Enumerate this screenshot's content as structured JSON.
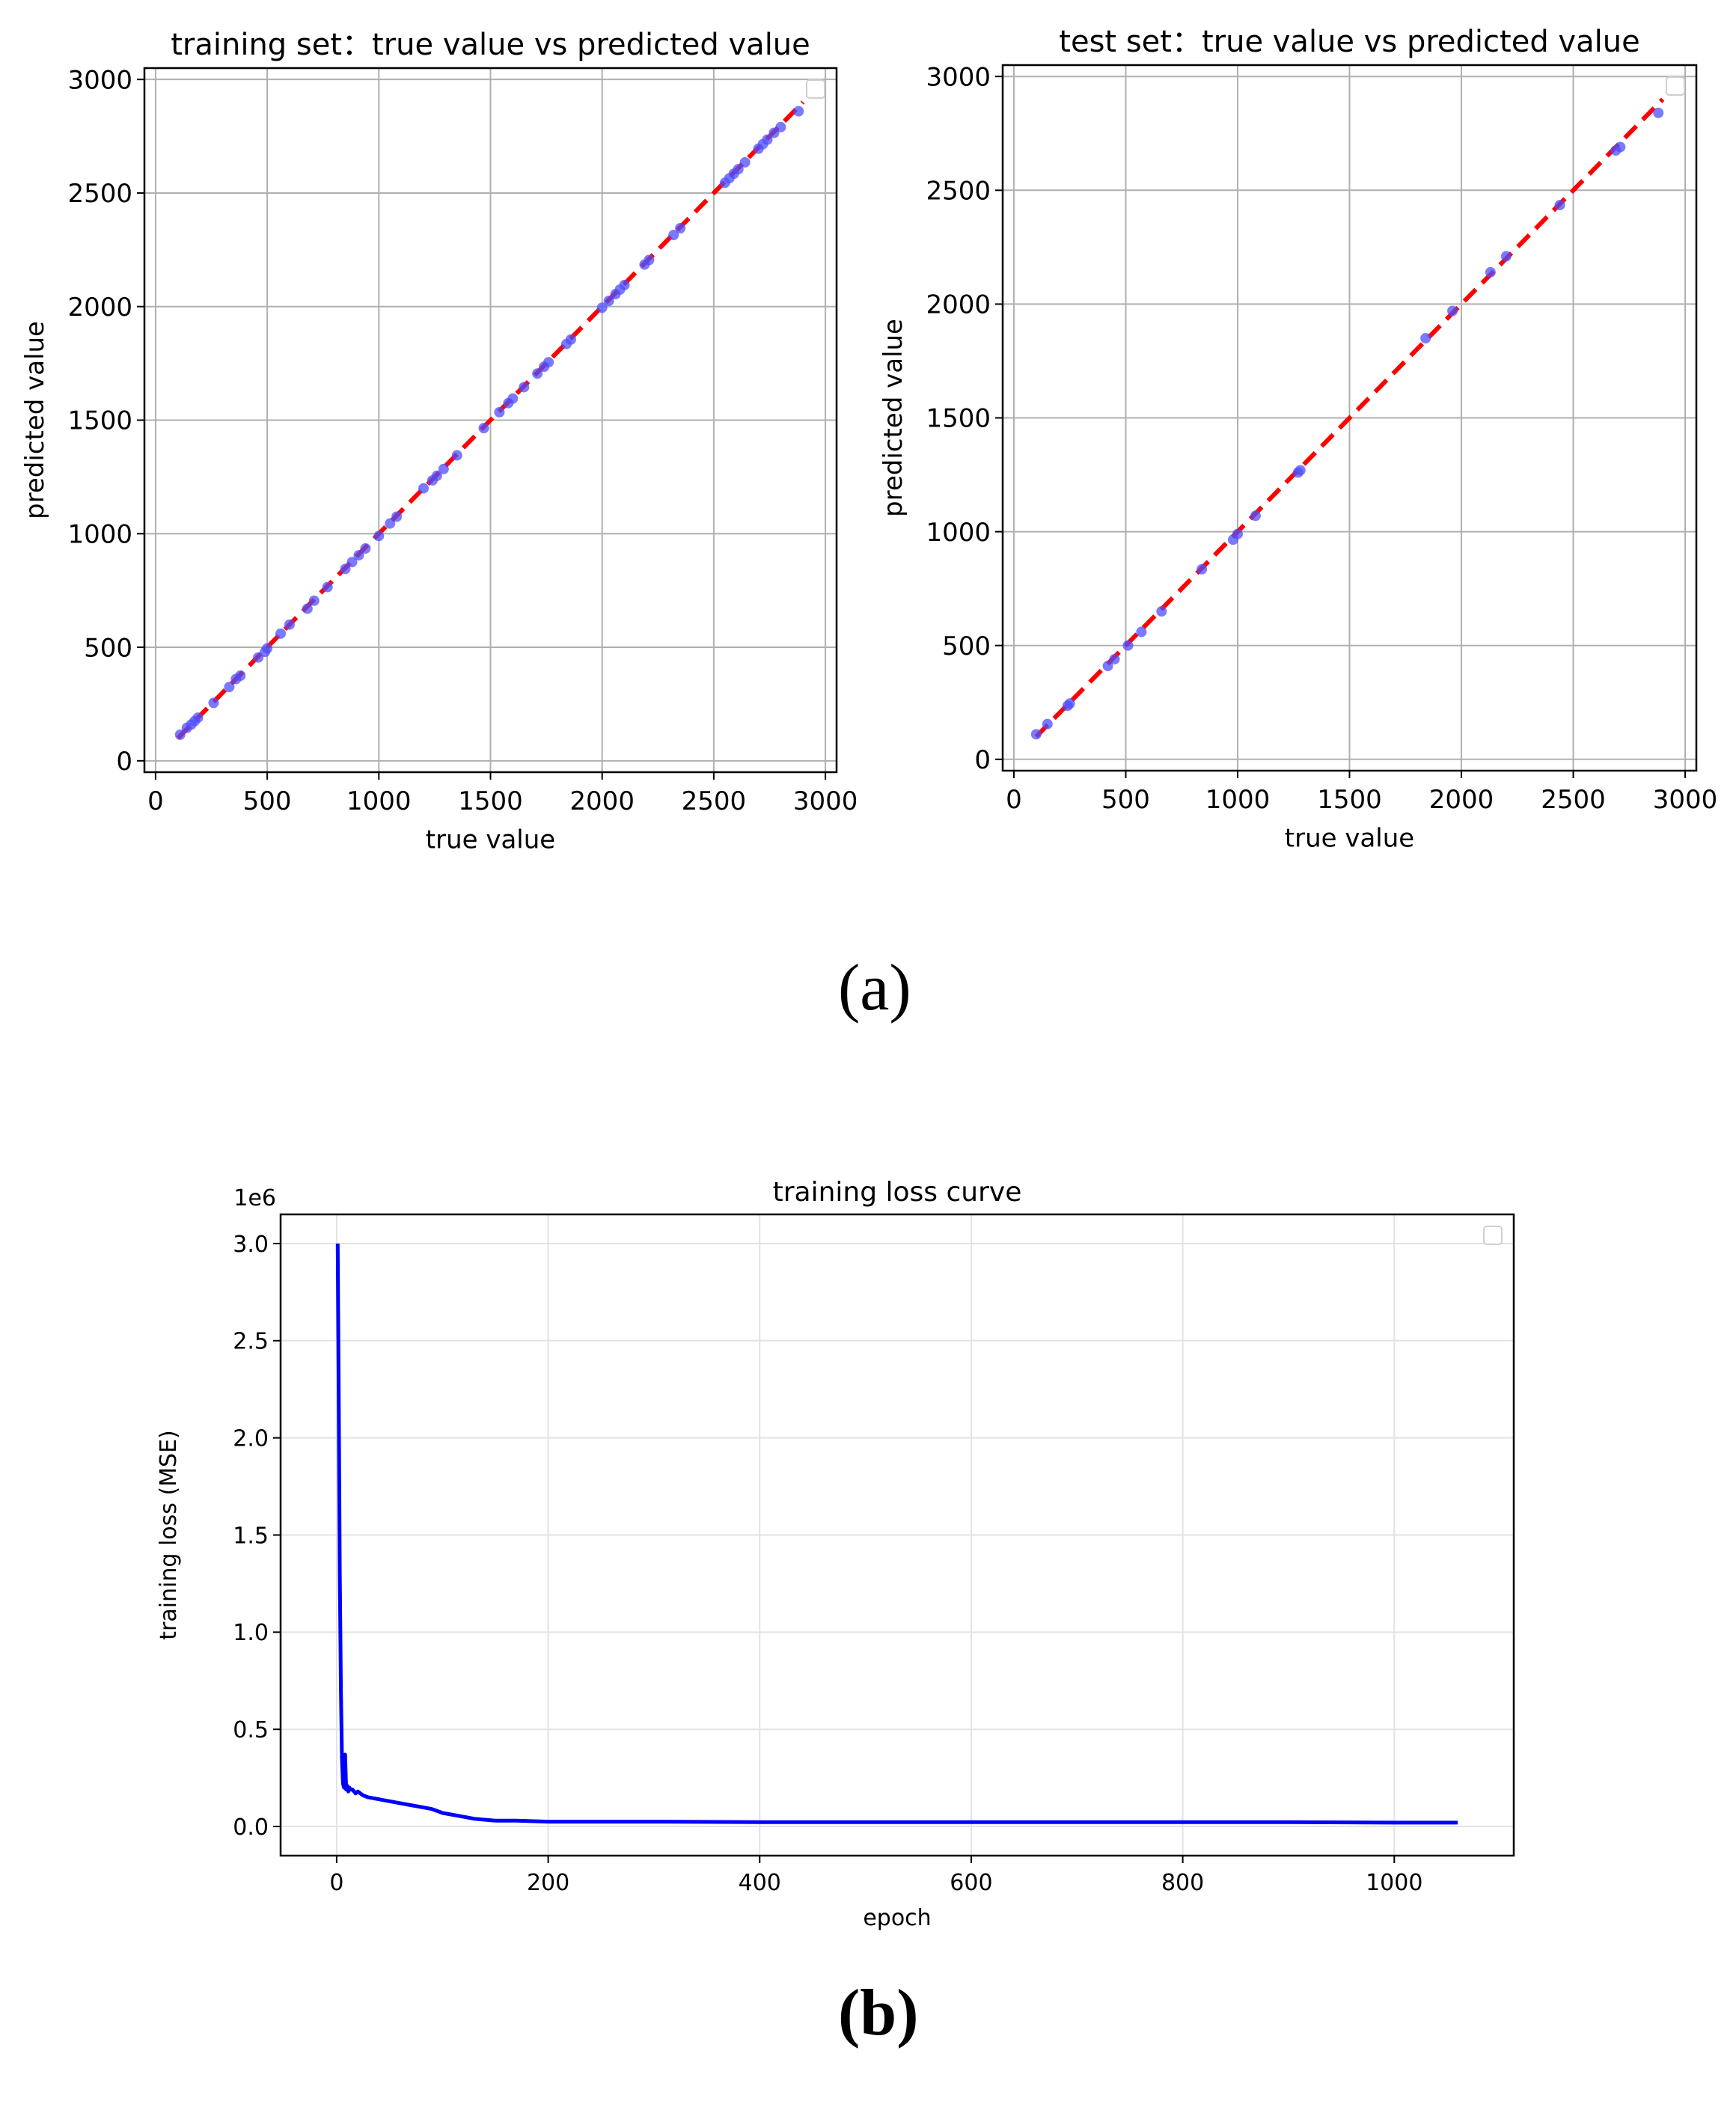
{
  "captions": {
    "a": "(a)",
    "b": "(b)"
  },
  "colors": {
    "points": "#4d4dff",
    "ideal_line": "#ff0000",
    "loss_line": "#0000ff",
    "grid": "#b0b0b0"
  },
  "chart_data": [
    {
      "type": "scatter",
      "title": "training set：true value vs predicted value",
      "xlabel": "true value",
      "ylabel": "predicted value",
      "xlim": [
        -50,
        3050
      ],
      "ylim": [
        -50,
        3050
      ],
      "xticks": [
        0,
        500,
        1000,
        1500,
        2000,
        2500,
        3000
      ],
      "yticks": [
        0,
        500,
        1000,
        1500,
        2000,
        2500,
        3000
      ],
      "grid": true,
      "legend": "top-right (empty)",
      "reference_line": {
        "style": "dashed",
        "color": "red",
        "from": [
          100,
          100
        ],
        "to": [
          2900,
          2900
        ]
      },
      "series": [
        {
          "x": [
            110,
            140,
            160,
            175,
            190,
            260,
            330,
            360,
            380,
            460,
            490,
            500,
            560,
            600,
            680,
            710,
            770,
            850,
            880,
            910,
            940,
            1000,
            1050,
            1080,
            1200,
            1240,
            1260,
            1290,
            1350,
            1470,
            1540,
            1580,
            1600,
            1650,
            1710,
            1740,
            1760,
            1840,
            1860,
            2000,
            2030,
            2060,
            2080,
            2100,
            2190,
            2210,
            2320,
            2350,
            2550,
            2570,
            2590,
            2610,
            2640,
            2700,
            2720,
            2740,
            2770,
            2800,
            2880
          ],
          "y": [
            115,
            145,
            160,
            175,
            190,
            255,
            325,
            360,
            375,
            455,
            480,
            495,
            560,
            600,
            670,
            705,
            765,
            845,
            875,
            905,
            935,
            990,
            1045,
            1075,
            1200,
            1235,
            1255,
            1285,
            1345,
            1465,
            1535,
            1575,
            1595,
            1645,
            1705,
            1735,
            1755,
            1835,
            1855,
            1995,
            2025,
            2055,
            2075,
            2095,
            2185,
            2205,
            2315,
            2345,
            2545,
            2565,
            2585,
            2605,
            2635,
            2695,
            2715,
            2735,
            2765,
            2790,
            2860
          ]
        }
      ]
    },
    {
      "type": "scatter",
      "title": "test set：true value vs predicted value",
      "xlabel": "true value",
      "ylabel": "predicted value",
      "xlim": [
        -50,
        3050
      ],
      "ylim": [
        -50,
        3050
      ],
      "xticks": [
        0,
        500,
        1000,
        1500,
        2000,
        2500,
        3000
      ],
      "yticks": [
        0,
        500,
        1000,
        1500,
        2000,
        2500,
        3000
      ],
      "grid": true,
      "legend": "top-right (empty)",
      "reference_line": {
        "style": "dashed",
        "color": "red",
        "from": [
          100,
          100
        ],
        "to": [
          2900,
          2900
        ]
      },
      "series": [
        {
          "x": [
            100,
            150,
            240,
            250,
            420,
            450,
            510,
            570,
            660,
            840,
            980,
            1000,
            1080,
            1270,
            1280,
            1840,
            1960,
            2130,
            2200,
            2440,
            2690,
            2710,
            2880
          ],
          "y": [
            110,
            155,
            235,
            245,
            410,
            440,
            500,
            560,
            650,
            835,
            965,
            990,
            1070,
            1260,
            1270,
            1850,
            1970,
            2140,
            2210,
            2435,
            2675,
            2690,
            2840
          ]
        }
      ]
    },
    {
      "type": "line",
      "title": "training loss curve",
      "xlabel": "epoch",
      "ylabel": "training loss (MSE)",
      "y_scale_label": "1e6",
      "xlim": [
        -53,
        1113
      ],
      "ylim": [
        -0.15,
        3.15
      ],
      "xticks": [
        0,
        200,
        400,
        600,
        800,
        1000
      ],
      "yticks": [
        0.0,
        0.5,
        1.0,
        1.5,
        2.0,
        2.5,
        3.0
      ],
      "grid": true,
      "legend": "top-right (empty)",
      "series": [
        {
          "x": [
            1,
            2,
            3,
            4,
            5,
            6,
            7,
            8,
            9,
            10,
            11,
            12,
            13,
            15,
            18,
            20,
            25,
            30,
            40,
            50,
            60,
            70,
            80,
            90,
            100,
            110,
            120,
            130,
            150,
            170,
            200,
            300,
            400,
            500,
            600,
            700,
            800,
            900,
            1000,
            1060
          ],
          "y": [
            3.0,
            2.2,
            1.3,
            0.7,
            0.35,
            0.22,
            0.2,
            0.37,
            0.19,
            0.21,
            0.18,
            0.2,
            0.19,
            0.19,
            0.17,
            0.18,
            0.16,
            0.15,
            0.14,
            0.13,
            0.12,
            0.11,
            0.1,
            0.09,
            0.07,
            0.06,
            0.05,
            0.04,
            0.03,
            0.03,
            0.025,
            0.025,
            0.022,
            0.022,
            0.022,
            0.022,
            0.022,
            0.022,
            0.02,
            0.02
          ]
        }
      ]
    }
  ]
}
